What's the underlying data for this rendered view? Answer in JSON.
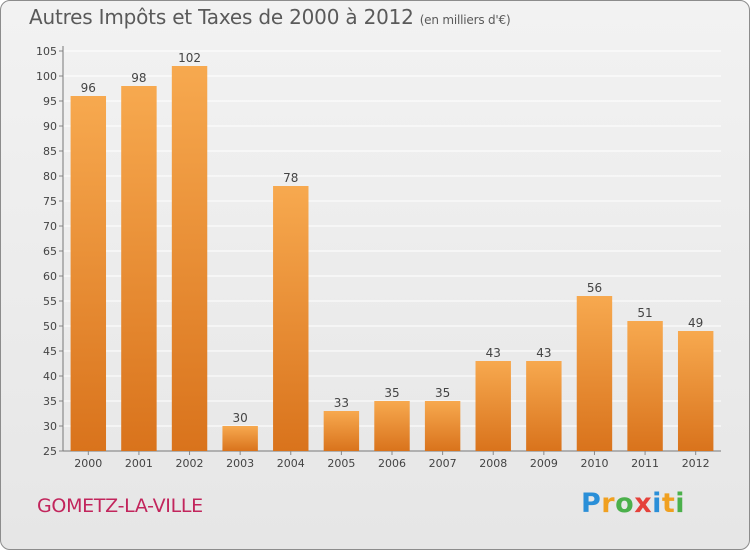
{
  "title": "Autres Impôts et Taxes de 2000 à 2012",
  "subtitle": "(en milliers d'€)",
  "commune": "GOMETZ-LA-VILLE",
  "logo": {
    "letters": [
      "P",
      "r",
      "o",
      "x",
      "i",
      "t",
      "i"
    ],
    "colors": [
      "#2a8fd8",
      "#f0a020",
      "#4bb04b",
      "#e5413a",
      "#2a8fd8",
      "#f0a020",
      "#4bb04b"
    ]
  },
  "colors": {
    "bar_top": "#f7a94f",
    "bar_bottom": "#d9731c",
    "grid": "#ffffff",
    "text": "#444444"
  },
  "chart_data": {
    "type": "bar",
    "title": "Autres Impôts et Taxes de 2000 à 2012",
    "xlabel": "",
    "ylabel": "",
    "categories": [
      "2000",
      "2001",
      "2002",
      "2003",
      "2004",
      "2005",
      "2006",
      "2007",
      "2008",
      "2009",
      "2010",
      "2011",
      "2012"
    ],
    "values": [
      96,
      98,
      102,
      30,
      78,
      33,
      35,
      35,
      43,
      43,
      56,
      51,
      49
    ],
    "value_labels": [
      "96",
      "98",
      "102",
      "30",
      "78",
      "33",
      "35",
      "35",
      "43",
      "43",
      "56",
      "51",
      "49"
    ],
    "ylim": [
      25,
      105
    ],
    "yticks": [
      25,
      30,
      35,
      40,
      45,
      50,
      55,
      60,
      65,
      70,
      75,
      80,
      85,
      90,
      95,
      100,
      105
    ],
    "grid": true,
    "legend": "none"
  }
}
